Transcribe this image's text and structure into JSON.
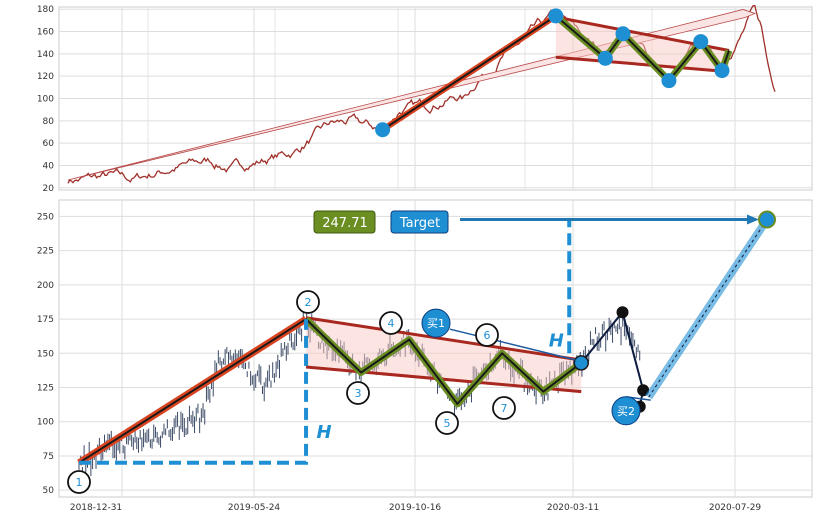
{
  "chart_data": [
    {
      "type": "line",
      "panel": "top",
      "ylim": [
        18,
        182
      ],
      "yticks": [
        20,
        40,
        60,
        80,
        100,
        120,
        140,
        160,
        180
      ],
      "grid": true,
      "series_color": "#a0302a",
      "uptrend_arrow": {
        "from": [
          0,
          27
        ],
        "to": [
          1.0,
          178
        ]
      },
      "rally_line": {
        "from": [
          0.445,
          72
        ],
        "to": [
          0.69,
          174
        ]
      },
      "channel_upper": {
        "from": [
          0.69,
          173
        ],
        "to": [
          0.935,
          143
        ]
      },
      "channel_lower": {
        "from": [
          0.69,
          137
        ],
        "to": [
          0.935,
          124
        ]
      },
      "zigzag_points": [
        [
          0.69,
          174
        ],
        [
          0.76,
          136
        ],
        [
          0.785,
          158
        ],
        [
          0.85,
          116
        ],
        [
          0.895,
          151
        ],
        [
          0.925,
          125
        ],
        [
          0.935,
          143
        ]
      ],
      "markers": [
        [
          0.445,
          72
        ],
        [
          0.69,
          174
        ],
        [
          0.76,
          136
        ],
        [
          0.785,
          158
        ],
        [
          0.85,
          116
        ],
        [
          0.895,
          151
        ],
        [
          0.925,
          125
        ]
      ]
    },
    {
      "type": "line",
      "panel": "bottom",
      "ylim": [
        45,
        262
      ],
      "yticks": [
        50,
        75,
        100,
        125,
        150,
        175,
        200,
        225,
        250
      ],
      "xtick_labels": [
        "2018-12-31",
        "2019-05-24",
        "2019-10-16",
        "2020-03-11",
        "2020-07-29"
      ],
      "grid": true,
      "pattern_points": [
        {
          "label": "1",
          "x": 0.0,
          "y": 70
        },
        {
          "label": "2",
          "x": 0.33,
          "y": 175
        },
        {
          "label": "3",
          "x": 0.41,
          "y": 136
        },
        {
          "label": "4",
          "x": 0.48,
          "y": 160
        },
        {
          "label": "5",
          "x": 0.55,
          "y": 113
        },
        {
          "label": "6",
          "x": 0.615,
          "y": 150
        },
        {
          "label": "7",
          "x": 0.675,
          "y": 122
        }
      ],
      "breakout": {
        "x": 0.73,
        "y": 143
      },
      "post_breakout": [
        [
          0.73,
          143
        ],
        [
          0.79,
          180
        ],
        [
          0.82,
          123
        ],
        [
          0.815,
          111
        ]
      ],
      "height_h": 105,
      "target_value": 247.71,
      "target_label": "Target",
      "buy_signals": [
        "买1",
        "买2"
      ],
      "h_label": "H",
      "channel_upper": {
        "from": [
          0.33,
          176
        ],
        "to": [
          0.73,
          145
        ]
      },
      "channel_lower": {
        "from": [
          0.33,
          140
        ],
        "to": [
          0.73,
          122
        ]
      }
    }
  ]
}
